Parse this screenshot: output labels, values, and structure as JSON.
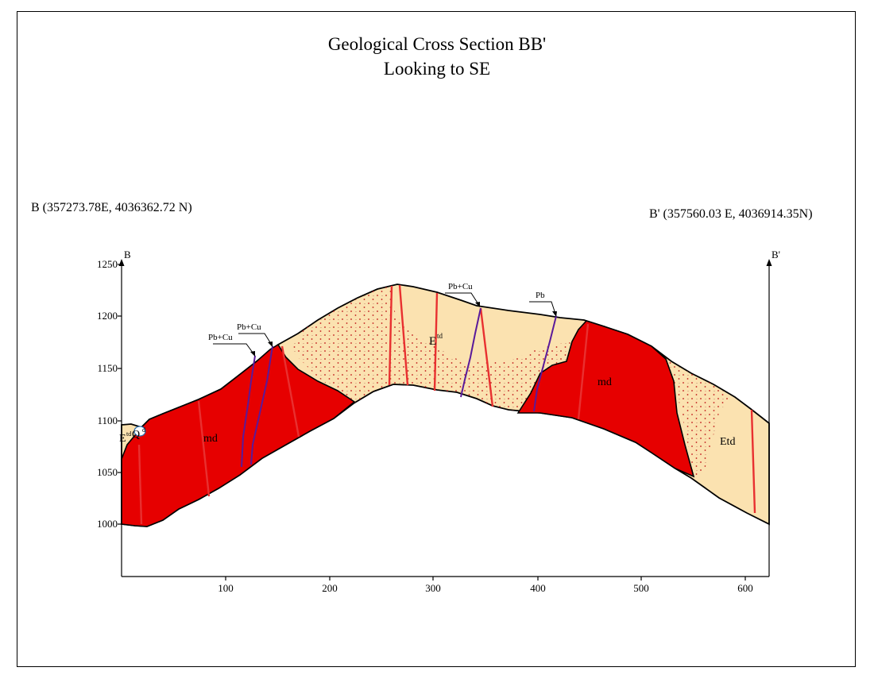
{
  "title": {
    "line1": "Geological Cross Section BB'",
    "line2": "Looking to SE"
  },
  "endpoints": {
    "start_coords": "B (357273.78E, 4036362.72 N)",
    "end_coords": "B' (357560.03 E, 4036914.35N)",
    "start_letter": "B",
    "end_letter": "B'"
  },
  "axes": {
    "y_ticks": [
      "1250",
      "1200",
      "1150",
      "1100",
      "1050",
      "1000"
    ],
    "x_ticks": [
      "100",
      "200",
      "300",
      "400",
      "500",
      "600"
    ]
  },
  "units": {
    "md_left": "md",
    "md_right": "md",
    "etd_center": "E",
    "etd_center_sup": "td",
    "etd_left": "E",
    "etd_left_sup": "td",
    "qd": "Q",
    "qd_sup": "d",
    "etd_right": "Etd"
  },
  "mineralization": {
    "label_1": "Pb+Cu",
    "label_2": "Pb+Cu",
    "label_3": "Pb+Cu",
    "label_4": "Pb"
  },
  "colors": {
    "etd_fill": "#fbe2b0",
    "md_fill": "#e60000",
    "fault": "#e83030",
    "vein": "#5a1a9a",
    "dots": "#c01818"
  }
}
